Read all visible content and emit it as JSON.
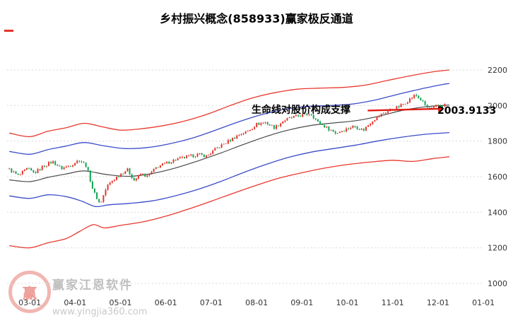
{
  "title": "乡村振兴概念(858933)赢家极反通道",
  "annotations": {
    "support_text": "生命线对股价构成支撑",
    "price_label": "2003.9133"
  },
  "watermark": {
    "brand": "赢家江恩软件",
    "url": "www.yingjia360.com",
    "logo_char": "赢"
  },
  "colors": {
    "up": "#e2342a",
    "down": "#12a352",
    "grid": "#d9d9d9",
    "axis_text": "#333333",
    "support_line": "#e11b12"
  },
  "chart_data": {
    "type": "candlestick",
    "title": "乡村振兴概念(858933)赢家极反通道",
    "legend": "none",
    "grid": "horizontal-dashed",
    "x_ticks": [
      "03-01",
      "04-01",
      "05-01",
      "06-01",
      "07-01",
      "08-01",
      "09-01",
      "10-01",
      "11-01",
      "12-01",
      "01-01"
    ],
    "x_tick_positions": [
      3,
      4,
      5,
      6,
      7,
      8,
      9,
      10,
      11,
      12,
      13
    ],
    "x_domain": [
      2.5,
      13.03
    ],
    "y_ticks": [
      2200,
      2000,
      1800,
      1600,
      1400,
      1200,
      1000
    ],
    "y_domain": [
      1000,
      2200
    ],
    "bars": {
      "count": 200,
      "start": 2.55,
      "end": 12.15,
      "noise_amp": 9
    },
    "close_keypoints": [
      [
        2.55,
        1640
      ],
      [
        2.75,
        1605
      ],
      [
        2.95,
        1645
      ],
      [
        3.1,
        1620
      ],
      [
        3.3,
        1660
      ],
      [
        3.5,
        1685
      ],
      [
        3.7,
        1645
      ],
      [
        3.9,
        1665
      ],
      [
        4.1,
        1695
      ],
      [
        4.25,
        1660
      ],
      [
        4.4,
        1520
      ],
      [
        4.55,
        1445
      ],
      [
        4.7,
        1545
      ],
      [
        4.85,
        1585
      ],
      [
        5.0,
        1615
      ],
      [
        5.15,
        1640
      ],
      [
        5.3,
        1580
      ],
      [
        5.45,
        1615
      ],
      [
        5.6,
        1600
      ],
      [
        5.8,
        1655
      ],
      [
        6.0,
        1675
      ],
      [
        6.2,
        1695
      ],
      [
        6.45,
        1710
      ],
      [
        6.7,
        1725
      ],
      [
        6.9,
        1715
      ],
      [
        7.1,
        1755
      ],
      [
        7.35,
        1795
      ],
      [
        7.6,
        1835
      ],
      [
        7.8,
        1855
      ],
      [
        8.0,
        1895
      ],
      [
        8.2,
        1905
      ],
      [
        8.4,
        1875
      ],
      [
        8.6,
        1915
      ],
      [
        8.8,
        1935
      ],
      [
        9.0,
        1945
      ],
      [
        9.2,
        1955
      ],
      [
        9.35,
        1905
      ],
      [
        9.55,
        1875
      ],
      [
        9.75,
        1845
      ],
      [
        9.95,
        1865
      ],
      [
        10.15,
        1885
      ],
      [
        10.35,
        1860
      ],
      [
        10.55,
        1915
      ],
      [
        10.75,
        1950
      ],
      [
        10.95,
        1975
      ],
      [
        11.15,
        1995
      ],
      [
        11.35,
        2030
      ],
      [
        11.5,
        2060
      ],
      [
        11.65,
        2025
      ],
      [
        11.8,
        1975
      ],
      [
        11.95,
        1995
      ],
      [
        12.15,
        2004
      ]
    ],
    "bands": [
      {
        "name": "upper-red",
        "color": "#e8392e",
        "width": 1.3,
        "points": [
          [
            2.55,
            1845
          ],
          [
            3.0,
            1825
          ],
          [
            3.4,
            1855
          ],
          [
            3.8,
            1875
          ],
          [
            4.2,
            1900
          ],
          [
            4.6,
            1880
          ],
          [
            5.0,
            1862
          ],
          [
            5.4,
            1868
          ],
          [
            5.9,
            1885
          ],
          [
            6.4,
            1912
          ],
          [
            6.9,
            1950
          ],
          [
            7.4,
            1998
          ],
          [
            7.9,
            2042
          ],
          [
            8.4,
            2072
          ],
          [
            8.9,
            2092
          ],
          [
            9.4,
            2098
          ],
          [
            9.9,
            2102
          ],
          [
            10.4,
            2115
          ],
          [
            10.9,
            2142
          ],
          [
            11.4,
            2168
          ],
          [
            11.9,
            2190
          ],
          [
            12.25,
            2200
          ]
        ]
      },
      {
        "name": "upper-blue",
        "color": "#3b4cc8",
        "width": 1.3,
        "points": [
          [
            2.55,
            1742
          ],
          [
            3.0,
            1726
          ],
          [
            3.4,
            1752
          ],
          [
            3.8,
            1772
          ],
          [
            4.2,
            1792
          ],
          [
            4.6,
            1775
          ],
          [
            5.1,
            1758
          ],
          [
            5.6,
            1764
          ],
          [
            6.1,
            1786
          ],
          [
            6.6,
            1818
          ],
          [
            7.1,
            1862
          ],
          [
            7.6,
            1908
          ],
          [
            8.1,
            1948
          ],
          [
            8.6,
            1978
          ],
          [
            9.1,
            1995
          ],
          [
            9.6,
            2000
          ],
          [
            10.1,
            2008
          ],
          [
            10.6,
            2030
          ],
          [
            11.1,
            2062
          ],
          [
            11.6,
            2092
          ],
          [
            12.1,
            2118
          ],
          [
            12.25,
            2124
          ]
        ]
      },
      {
        "name": "mid-lifeline",
        "color": "#4a4a4a",
        "width": 1.2,
        "points": [
          [
            2.55,
            1582
          ],
          [
            3.0,
            1572
          ],
          [
            3.4,
            1596
          ],
          [
            3.8,
            1615
          ],
          [
            4.2,
            1632
          ],
          [
            4.7,
            1612
          ],
          [
            5.2,
            1602
          ],
          [
            5.7,
            1618
          ],
          [
            6.2,
            1648
          ],
          [
            6.7,
            1688
          ],
          [
            7.2,
            1732
          ],
          [
            7.7,
            1780
          ],
          [
            8.2,
            1825
          ],
          [
            8.7,
            1862
          ],
          [
            9.2,
            1888
          ],
          [
            9.7,
            1902
          ],
          [
            10.2,
            1915
          ],
          [
            10.7,
            1940
          ],
          [
            11.2,
            1972
          ],
          [
            11.7,
            1992
          ],
          [
            12.25,
            2003
          ]
        ]
      },
      {
        "name": "lower-blue",
        "color": "#3b4cc8",
        "width": 1.3,
        "points": [
          [
            2.55,
            1492
          ],
          [
            3.0,
            1478
          ],
          [
            3.4,
            1498
          ],
          [
            3.8,
            1488
          ],
          [
            4.15,
            1462
          ],
          [
            4.45,
            1432
          ],
          [
            4.75,
            1442
          ],
          [
            5.2,
            1450
          ],
          [
            5.7,
            1464
          ],
          [
            6.2,
            1492
          ],
          [
            6.7,
            1528
          ],
          [
            7.2,
            1572
          ],
          [
            7.7,
            1622
          ],
          [
            8.2,
            1668
          ],
          [
            8.7,
            1708
          ],
          [
            9.2,
            1738
          ],
          [
            9.7,
            1758
          ],
          [
            10.2,
            1778
          ],
          [
            10.7,
            1802
          ],
          [
            11.2,
            1822
          ],
          [
            11.7,
            1838
          ],
          [
            12.25,
            1848
          ]
        ]
      },
      {
        "name": "lower-red",
        "color": "#e8392e",
        "width": 1.3,
        "points": [
          [
            2.55,
            1212
          ],
          [
            3.0,
            1200
          ],
          [
            3.4,
            1228
          ],
          [
            3.8,
            1252
          ],
          [
            4.1,
            1292
          ],
          [
            4.4,
            1330
          ],
          [
            4.65,
            1312
          ],
          [
            5.0,
            1326
          ],
          [
            5.5,
            1346
          ],
          [
            6.0,
            1378
          ],
          [
            6.5,
            1418
          ],
          [
            7.0,
            1462
          ],
          [
            7.5,
            1508
          ],
          [
            8.0,
            1552
          ],
          [
            8.5,
            1592
          ],
          [
            9.0,
            1622
          ],
          [
            9.5,
            1648
          ],
          [
            10.0,
            1668
          ],
          [
            10.5,
            1682
          ],
          [
            11.0,
            1692
          ],
          [
            11.45,
            1686
          ],
          [
            11.9,
            1702
          ],
          [
            12.25,
            1712
          ]
        ]
      }
    ],
    "support_line": {
      "from": [
        10.45,
        1972
      ],
      "to": [
        12.02,
        1982
      ]
    }
  }
}
